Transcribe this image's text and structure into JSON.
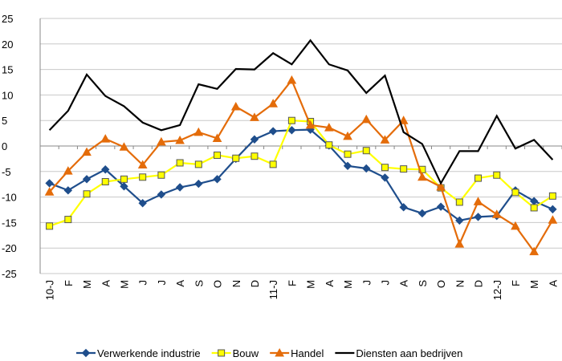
{
  "chart_data": {
    "type": "line",
    "categories": [
      "10-J",
      "F",
      "M",
      "A",
      "M",
      "J",
      "J",
      "A",
      "S",
      "O",
      "N",
      "D",
      "11-J",
      "F",
      "M",
      "A",
      "M",
      "J",
      "J",
      "A",
      "S",
      "O",
      "N",
      "D",
      "12-J",
      "F",
      "M",
      "A"
    ],
    "series": [
      {
        "name": "Verwerkende industrie",
        "color": "#1f4e8c",
        "marker": "diamond",
        "values": [
          -7.3,
          -8.7,
          -6.5,
          -4.6,
          -7.9,
          -11.2,
          -9.5,
          -8.1,
          -7.4,
          -6.5,
          -2.5,
          1.3,
          2.9,
          3.1,
          3.2,
          0.1,
          -3.9,
          -4.4,
          -6.2,
          -12.0,
          -13.2,
          -11.9,
          -14.6,
          -13.9,
          -13.7,
          -8.7,
          -10.8,
          -12.4
        ]
      },
      {
        "name": "Bouw",
        "color": "#ffff00",
        "marker": "square",
        "values": [
          -15.7,
          -14.4,
          -9.4,
          -7.0,
          -6.5,
          -6.1,
          -5.7,
          -3.3,
          -3.6,
          -1.8,
          -2.4,
          -2.0,
          -3.6,
          5.0,
          4.8,
          0.2,
          -1.6,
          -0.9,
          -4.2,
          -4.5,
          -4.6,
          -8.2,
          -11.0,
          -6.3,
          -5.7,
          -9.1,
          -12.1,
          -9.8
        ]
      },
      {
        "name": "Handel",
        "color": "#e46c0a",
        "marker": "triangle",
        "values": [
          -9.0,
          -4.9,
          -1.2,
          1.4,
          -0.2,
          -3.7,
          0.8,
          1.1,
          2.7,
          1.5,
          7.7,
          5.6,
          8.3,
          12.9,
          4.1,
          3.6,
          1.9,
          5.2,
          1.2,
          5.0,
          -6.1,
          -8.0,
          -19.2,
          -10.9,
          -13.4,
          -15.7,
          -20.7,
          -14.5
        ]
      },
      {
        "name": "Diensten aan bedrijven",
        "color": "#000000",
        "marker": "none",
        "values": [
          3.1,
          6.9,
          14.0,
          9.8,
          7.8,
          4.6,
          3.1,
          4.1,
          12.1,
          11.2,
          15.1,
          15.0,
          18.2,
          16.0,
          20.7,
          16.0,
          14.8,
          10.4,
          13.8,
          2.7,
          0.4,
          -7.3,
          -1.0,
          -1.0,
          5.9,
          -0.5,
          1.2,
          -2.7
        ]
      }
    ],
    "ylim": [
      -25,
      25
    ],
    "yticks": [
      -25,
      -20,
      -15,
      -10,
      -5,
      0,
      5,
      10,
      15,
      20,
      25
    ],
    "grid": true,
    "legend": "bottom"
  }
}
